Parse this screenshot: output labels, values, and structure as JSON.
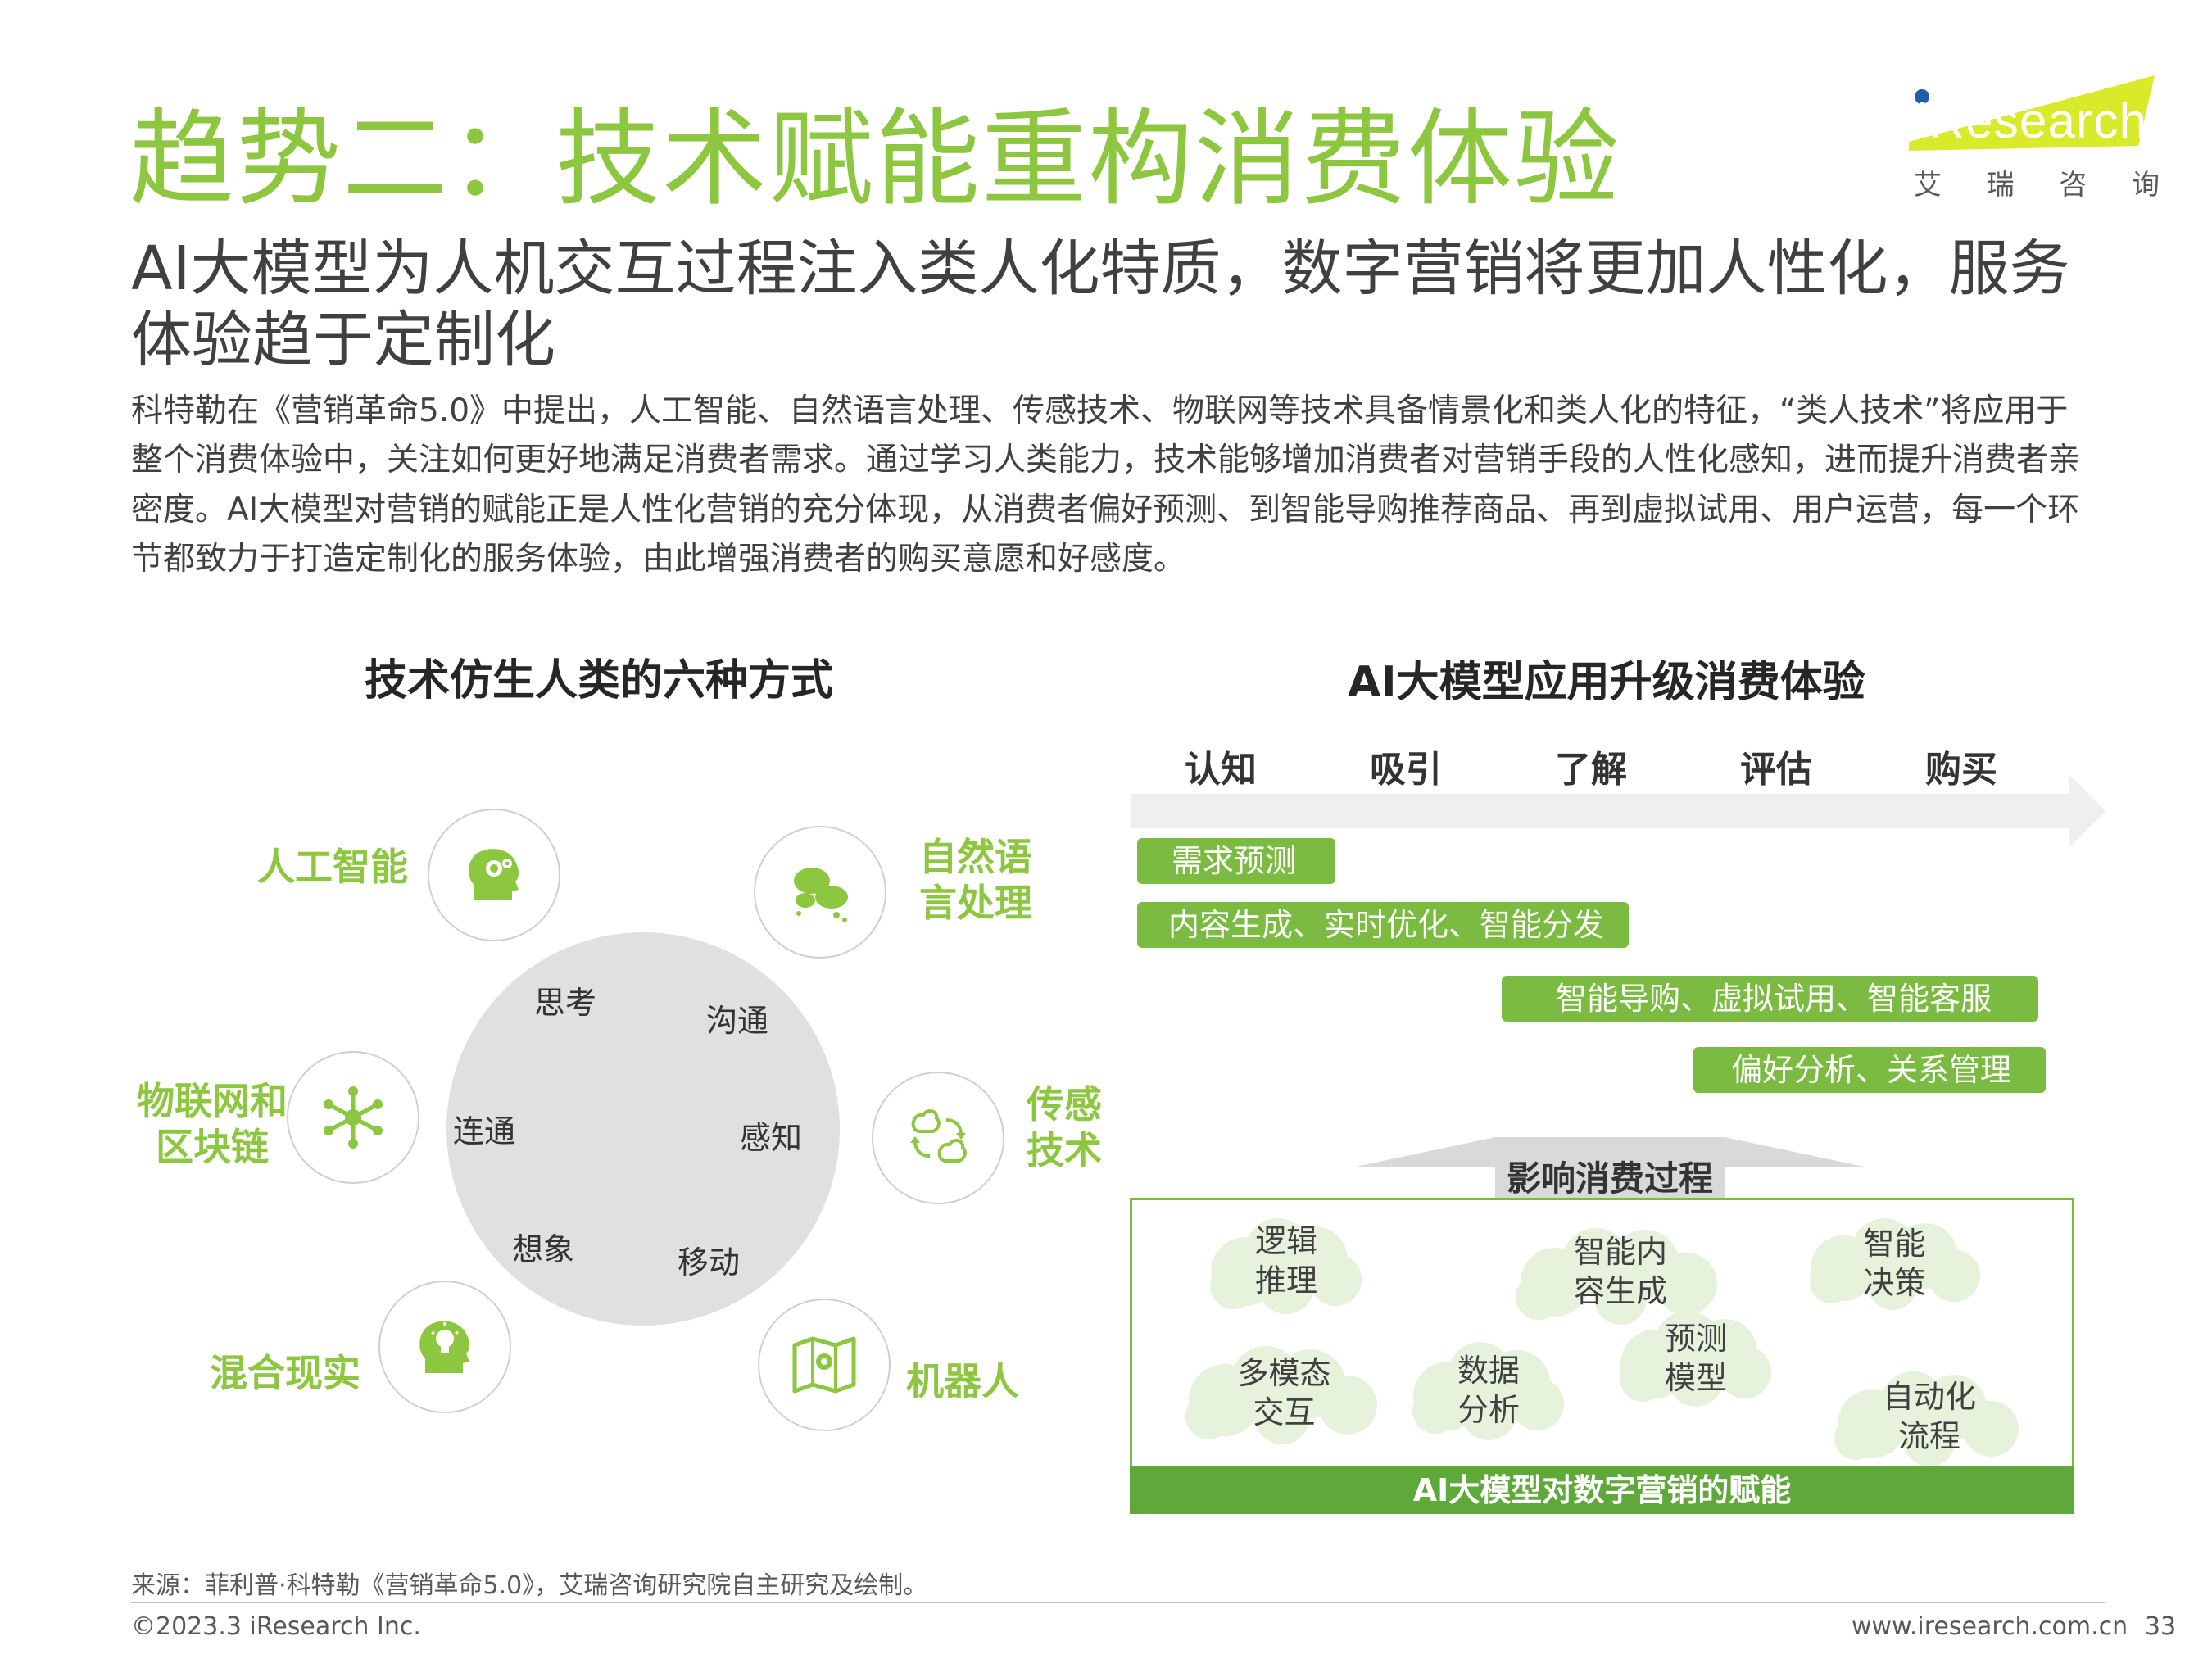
{
  "title": "趋势二：技术赋能重构消费体验",
  "subtitle": "AI大模型为人机交互过程注入类人化特质，数字营销将更加人性化，服务体验趋于定制化",
  "body": "科特勒在《营销革命5.0》中提出，人工智能、自然语言处理、传感技术、物联网等技术具备情景化和类人化的特征，“类人技术”将应用于整个消费体验中，关注如何更好地满足消费者需求。通过学习人类能力，技术能够增加消费者对营销手段的人性化感知，进而提升消费者亲密度。AI大模型对营销的赋能正是人性化营销的充分体现，从消费者偏好预测、到智能导购推荐商品、再到虚拟试用、用户运营，每一个环节都致力于打造定制化的服务体验，由此增强消费者的购买意愿和好感度。",
  "logo": {
    "brand": "iResearch",
    "chars": [
      "艾",
      "瑞",
      "咨",
      "询"
    ]
  },
  "left_panel": {
    "title": "技术仿生人类的六种方式",
    "center_words": [
      "思考",
      "沟通",
      "连通",
      "感知",
      "想象",
      "移动"
    ],
    "nodes": [
      {
        "label": "人工智能",
        "icon": "brain-gear-icon"
      },
      {
        "label": "自然语言处理",
        "icon": "speech-clouds-icon"
      },
      {
        "label": "物联网和区块链",
        "icon": "network-hub-icon"
      },
      {
        "label": "传感技术",
        "icon": "sensor-cycle-icon"
      },
      {
        "label": "混合现实",
        "icon": "head-bulb-icon"
      },
      {
        "label": "机器人",
        "icon": "map-robot-icon"
      }
    ]
  },
  "right_panel": {
    "title": "AI大模型应用升级消费体验",
    "stages": [
      "认知",
      "吸引",
      "了解",
      "评估",
      "购买"
    ],
    "bars": [
      "需求预测",
      "内容生成、实时优化、智能分发",
      "智能导购、虚拟试用、智能客服",
      "偏好分析、关系管理"
    ],
    "influence_label": "影响消费过程",
    "capabilities": [
      "逻辑推理",
      "智能内容生成",
      "智能决策",
      "多模态交互",
      "数据分析",
      "预测模型",
      "自动化流程"
    ],
    "box_caption": "AI大模型对数字营销的赋能"
  },
  "footer": {
    "source": "来源：菲利普·科特勒《营销革命5.0》，艾瑞咨询研究院自主研究及绘制。",
    "copyright": "©2023.3 iResearch Inc.",
    "url": "www.iresearch.com.cn",
    "page": "33"
  },
  "colors": {
    "accent_green": "#8dc63f",
    "bar_green": "#7cbb42",
    "cloud_green": "#e7f2dc",
    "logo_yellow": "#d9ea2b",
    "logo_blue": "#1f5fa8"
  }
}
